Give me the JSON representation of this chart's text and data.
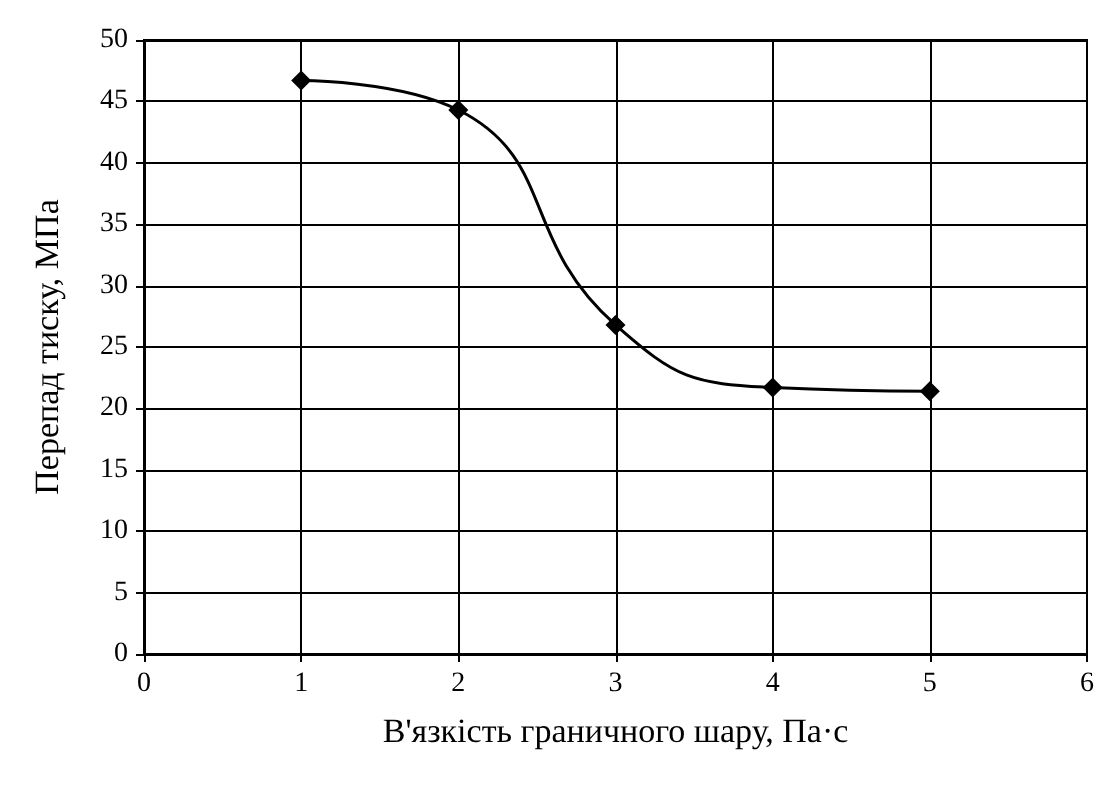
{
  "chart_data": {
    "type": "line",
    "xlabel": "В'язкість граничного шару, Па·с",
    "ylabel": "Перепад тиску, МПа",
    "x": [
      1,
      2,
      3,
      4,
      5
    ],
    "series": [
      {
        "color": "#000000",
        "values": [
          46.7,
          44.3,
          26.8,
          21.7,
          21.4
        ]
      }
    ],
    "xlim": [
      0,
      6
    ],
    "xticks": [
      0,
      1,
      2,
      3,
      4,
      5,
      6
    ],
    "ylim": [
      0,
      50
    ],
    "yticks": [
      0,
      5,
      10,
      15,
      20,
      25,
      30,
      35,
      40,
      45,
      50
    ],
    "grid": true,
    "marker": "diamond",
    "line_style": "solid"
  }
}
